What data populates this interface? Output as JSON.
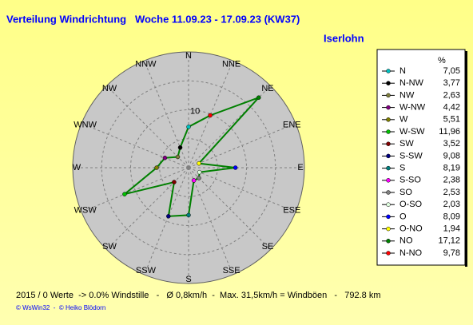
{
  "chart_data": {
    "type": "radar",
    "title": "Verteilung Windrichtung   Woche 11.09.23 - 17.09.23 (KW37)",
    "location": "Iserlohn",
    "axis_labels": [
      "N",
      "NNE",
      "NE",
      "ENE",
      "E",
      "ESE",
      "SE",
      "SSE",
      "S",
      "SSW",
      "SW",
      "WSW",
      "W",
      "WNW",
      "NW",
      "NNW"
    ],
    "rlim": [
      0,
      20
    ],
    "rgrid": [
      5,
      10,
      15
    ],
    "rlabel": 10,
    "legend_header": "%",
    "categories": [
      "N",
      "N-NW",
      "NW",
      "W-NW",
      "W",
      "W-SW",
      "SW",
      "S-SW",
      "S",
      "S-SO",
      "SO",
      "O-SO",
      "O",
      "O-NO",
      "NO",
      "N-NO"
    ],
    "values": [
      7.05,
      3.77,
      2.63,
      4.42,
      5.51,
      11.96,
      3.52,
      9.08,
      8.19,
      2.38,
      2.53,
      2.03,
      8.09,
      1.94,
      17.12,
      9.78
    ],
    "value_labels": [
      "7,05",
      "3,77",
      "2,63",
      "4,42",
      "5,51",
      "11,96",
      "3,52",
      "9,08",
      "8,19",
      "2,38",
      "2,53",
      "2,03",
      "8,09",
      "1,94",
      "17,12",
      "9,78"
    ],
    "colors": [
      "#00c0c0",
      "#000000",
      "#808040",
      "#800080",
      "#808000",
      "#00c000",
      "#800000",
      "#000080",
      "#008080",
      "#ff00ff",
      "#808080",
      "#e0ffe0",
      "#0000ff",
      "#ffff00",
      "#008000",
      "#ff0000"
    ],
    "line_color": "#008000",
    "footer": "2015 / 0 Werte  -> 0.0% Windstille   -   Ø 0,8km/h  -  Max. 31,5km/h = Windböen   -   792.8 km",
    "credits": "© WsWin32  -  © Heiko Blödorn"
  }
}
